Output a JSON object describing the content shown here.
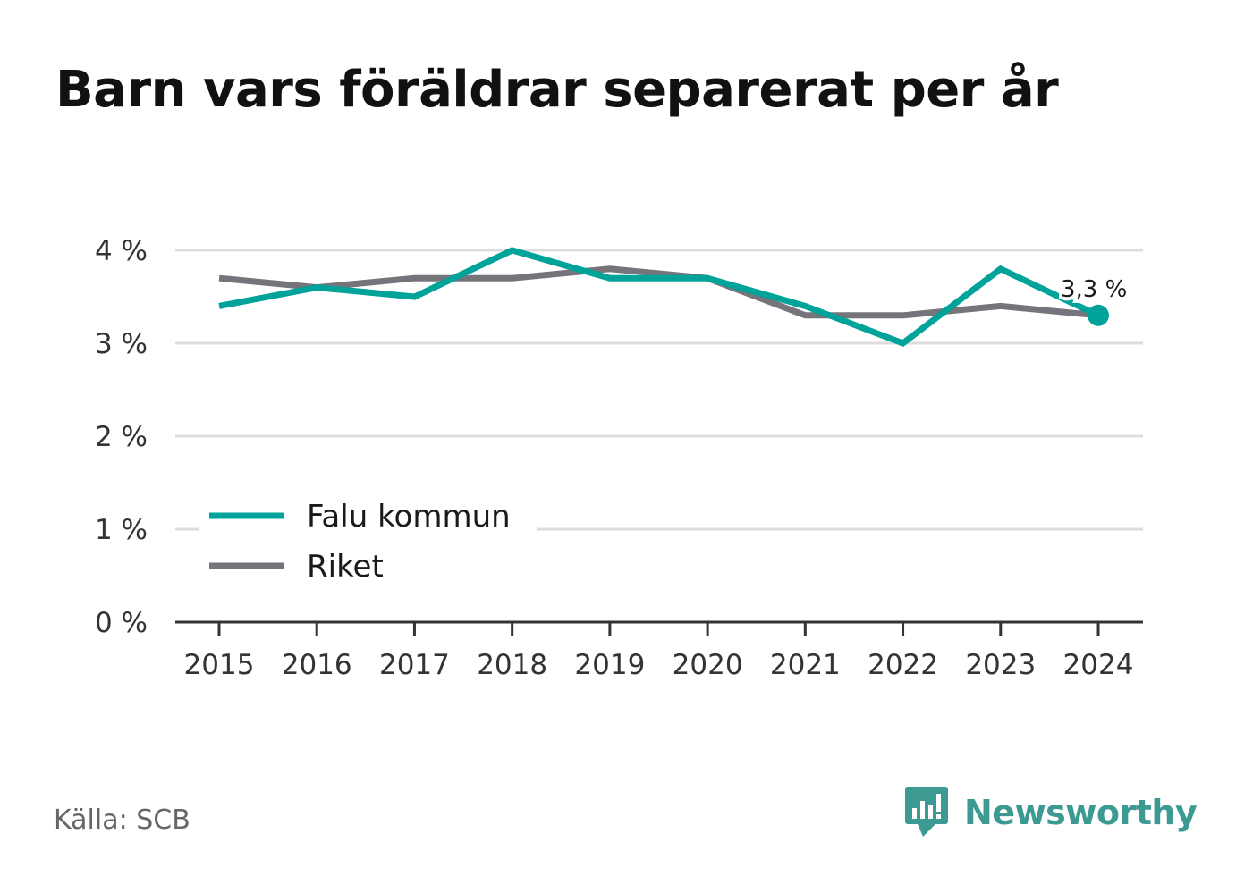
{
  "chart_data": {
    "type": "line",
    "title": "Barn vars föräldrar separerat per år",
    "x": [
      "2015",
      "2016",
      "2017",
      "2018",
      "2019",
      "2020",
      "2021",
      "2022",
      "2023",
      "2024"
    ],
    "series": [
      {
        "name": "Falu kommun",
        "color": "#00a39a",
        "values": [
          3.4,
          3.6,
          3.5,
          4.0,
          3.7,
          3.7,
          3.4,
          3.0,
          3.8,
          3.3
        ]
      },
      {
        "name": "Riket",
        "color": "#75747a",
        "values": [
          3.7,
          3.6,
          3.7,
          3.7,
          3.8,
          3.7,
          3.3,
          3.3,
          3.4,
          3.3
        ]
      }
    ],
    "ylim": [
      0,
      4
    ],
    "yticks": [
      0,
      1,
      2,
      3,
      4
    ],
    "ytick_labels": [
      "0 %",
      "1 %",
      "2 %",
      "3 %",
      "4 %"
    ],
    "grid": true,
    "legend_position": "lower-left",
    "end_label": "3,3 %",
    "xlabel": "",
    "ylabel": ""
  },
  "footer": {
    "source": "Källa: SCB",
    "brand": "Newsworthy",
    "brand_color": "#3d9a93",
    "brand_icon": "newsworthy-logo-icon"
  }
}
